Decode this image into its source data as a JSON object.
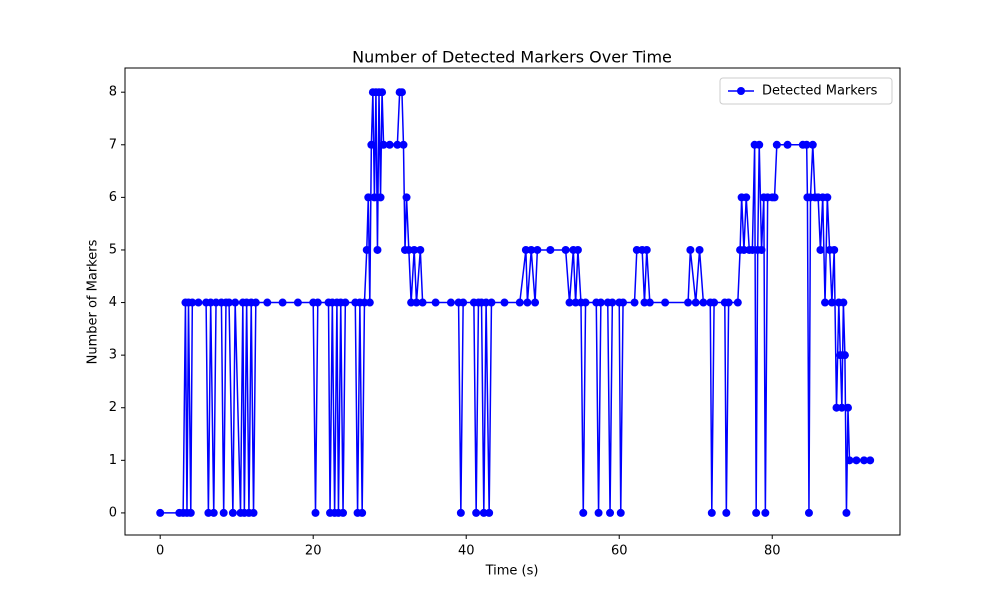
{
  "chart_data": {
    "type": "line",
    "title": "Number of Detected Markers Over Time",
    "xlabel": "Time (s)",
    "ylabel": "Number of Markers",
    "xlim": [
      -4.6,
      96.7
    ],
    "ylim": [
      -0.42,
      8.46
    ],
    "xticks": [
      0,
      20,
      40,
      60,
      80
    ],
    "yticks": [
      0,
      1,
      2,
      3,
      4,
      5,
      6,
      7,
      8
    ],
    "grid": false,
    "legend": "upper right",
    "x": [
      0,
      2.5,
      3,
      3.3,
      3.5,
      3.7,
      4,
      4.2,
      5,
      6,
      6.3,
      6.6,
      7,
      7.3,
      8,
      8.3,
      8.6,
      9,
      9.5,
      9.8,
      10.5,
      10.8,
      11,
      11.3,
      11.6,
      11.9,
      12.2,
      12.5,
      14,
      16,
      18,
      20,
      20.3,
      20.6,
      22,
      22.2,
      22.5,
      22.8,
      23.1,
      23.3,
      23.6,
      23.9,
      24.2,
      25.5,
      25.8,
      26.1,
      26.4,
      26.7,
      27,
      27.2,
      27.4,
      27.6,
      27.8,
      28,
      28.2,
      28.4,
      28.6,
      28.8,
      29,
      29.2,
      30,
      31,
      31.3,
      31.6,
      31.8,
      32,
      32.2,
      32.5,
      32.8,
      33.2,
      33.5,
      34,
      34.3,
      36,
      38,
      39,
      39.3,
      39.6,
      41,
      41.3,
      41.6,
      42,
      42.3,
      42.6,
      43,
      43.3,
      45,
      47,
      47.8,
      48,
      48.5,
      49,
      49.3,
      51,
      53,
      53.5,
      54,
      54.3,
      54.6,
      55,
      55.3,
      55.6,
      57,
      57.3,
      57.6,
      58.5,
      58.8,
      59.1,
      60,
      60.2,
      60.5,
      62,
      62.3,
      63,
      63.3,
      63.6,
      64,
      66,
      69,
      69.3,
      70,
      70.5,
      71,
      71.9,
      72.1,
      72.4,
      73.8,
      74,
      74.3,
      75.5,
      75.8,
      76,
      76.3,
      76.6,
      77,
      77.4,
      77.7,
      77.9,
      78.1,
      78.3,
      78.6,
      78.9,
      79.1,
      79.4,
      80,
      80.3,
      80.6,
      82,
      84,
      84.5,
      84.6,
      84.8,
      85,
      85.3,
      85.6,
      86,
      86.3,
      86.6,
      86.9,
      87.2,
      87.5,
      87.8,
      88.1,
      88.4,
      88.7,
      88.9,
      89.1,
      89.3,
      89.5,
      89.7,
      89.9,
      90.1,
      91,
      92,
      92.8
    ],
    "series": [
      {
        "name": "Detected Markers",
        "color": "#0000ff",
        "values": [
          0,
          0,
          0,
          4,
          0,
          4,
          0,
          4,
          4,
          4,
          0,
          4,
          0,
          4,
          4,
          0,
          4,
          4,
          0,
          4,
          0,
          4,
          0,
          4,
          0,
          4,
          0,
          4,
          4,
          4,
          4,
          4,
          0,
          4,
          4,
          0,
          4,
          0,
          4,
          0,
          4,
          0,
          4,
          4,
          0,
          4,
          0,
          4,
          5,
          6,
          4,
          7,
          8,
          6,
          8,
          5,
          8,
          6,
          8,
          7,
          7,
          7,
          8,
          8,
          7,
          5,
          6,
          5,
          4,
          5,
          4,
          5,
          4,
          4,
          4,
          4,
          0,
          4,
          4,
          0,
          4,
          4,
          0,
          4,
          0,
          4,
          4,
          4,
          5,
          4,
          5,
          4,
          5,
          5,
          5,
          4,
          5,
          4,
          5,
          4,
          0,
          4,
          4,
          0,
          4,
          4,
          0,
          4,
          4,
          0,
          4,
          4,
          5,
          5,
          4,
          5,
          4,
          4,
          4,
          5,
          4,
          5,
          4,
          4,
          0,
          4,
          4,
          0,
          4,
          4,
          5,
          6,
          5,
          6,
          5,
          5,
          7,
          0,
          5,
          7,
          5,
          6,
          0,
          6,
          6,
          6,
          7,
          7,
          7,
          7,
          6,
          0,
          6,
          7,
          6,
          6,
          5,
          6,
          4,
          6,
          5,
          4,
          5,
          2,
          4,
          3,
          2,
          4,
          3,
          0,
          2,
          1,
          1,
          1,
          1
        ]
      }
    ]
  }
}
